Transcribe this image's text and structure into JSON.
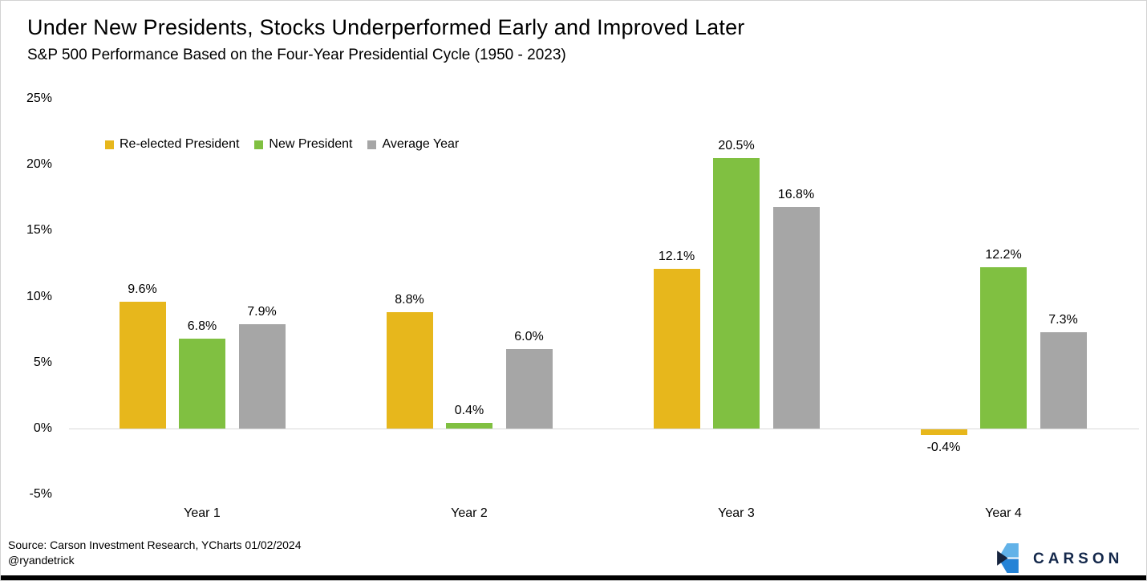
{
  "chart_data": {
    "type": "bar",
    "title": "Under New Presidents, Stocks Underperformed Early and Improved Later",
    "subtitle": "S&P 500 Performance Based on the Four-Year Presidential Cycle (1950 - 2023)",
    "categories": [
      "Year 1",
      "Year 2",
      "Year 3",
      "Year 4"
    ],
    "series": [
      {
        "name": "Re-elected President",
        "color": "#E7B71C",
        "values": [
          9.6,
          8.8,
          12.1,
          -0.4
        ]
      },
      {
        "name": "New President",
        "color": "#80C041",
        "values": [
          6.8,
          0.4,
          20.5,
          12.2
        ]
      },
      {
        "name": "Average Year",
        "color": "#A6A6A6",
        "values": [
          7.9,
          6.0,
          16.8,
          7.3
        ]
      }
    ],
    "data_label_format": "0.0%",
    "y_axis": {
      "ticks": [
        25,
        20,
        15,
        10,
        5,
        0,
        -5
      ],
      "ylim": [
        -5,
        25
      ],
      "unit": "%"
    },
    "grid": false,
    "legend_position": "top-left",
    "axis_line_color": "#D9D9D9"
  },
  "footer": {
    "source": "Source: Carson Investment Research, YCharts 01/02/2024",
    "handle": "@ryandetrick",
    "logo_text": "CARSON"
  },
  "colors": {
    "gold": "#E7B71C",
    "green": "#80C041",
    "gray": "#A6A6A6",
    "logo_navy": "#14284B",
    "logo_light_blue": "#62B2E8",
    "logo_mid_blue": "#2583D6",
    "bottom_bar": "#000000"
  }
}
